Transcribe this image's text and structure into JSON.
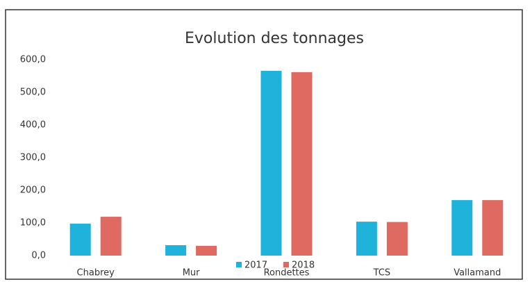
{
  "chart_data": {
    "type": "bar",
    "title": "Evolution des tonnages",
    "categories": [
      "Chabrey",
      "Mur",
      "Rondettes",
      "TCS",
      "Vallamand"
    ],
    "series": [
      {
        "name": "2017",
        "color": "#1fb3dc",
        "values": [
          98,
          32,
          566,
          104,
          170
        ]
      },
      {
        "name": "2018",
        "color": "#de6a62",
        "values": [
          119,
          30,
          562,
          103,
          170
        ]
      }
    ],
    "ylim": [
      0,
      600
    ],
    "yticks": [
      {
        "value": 0,
        "label": "0,0"
      },
      {
        "value": 100,
        "label": "100,0"
      },
      {
        "value": 200,
        "label": "200,0"
      },
      {
        "value": 300,
        "label": "300,0"
      },
      {
        "value": 400,
        "label": "400,0"
      },
      {
        "value": 500,
        "label": "500,0"
      },
      {
        "value": 600,
        "label": "600,0"
      }
    ],
    "grid": false,
    "legend": "bottom"
  }
}
